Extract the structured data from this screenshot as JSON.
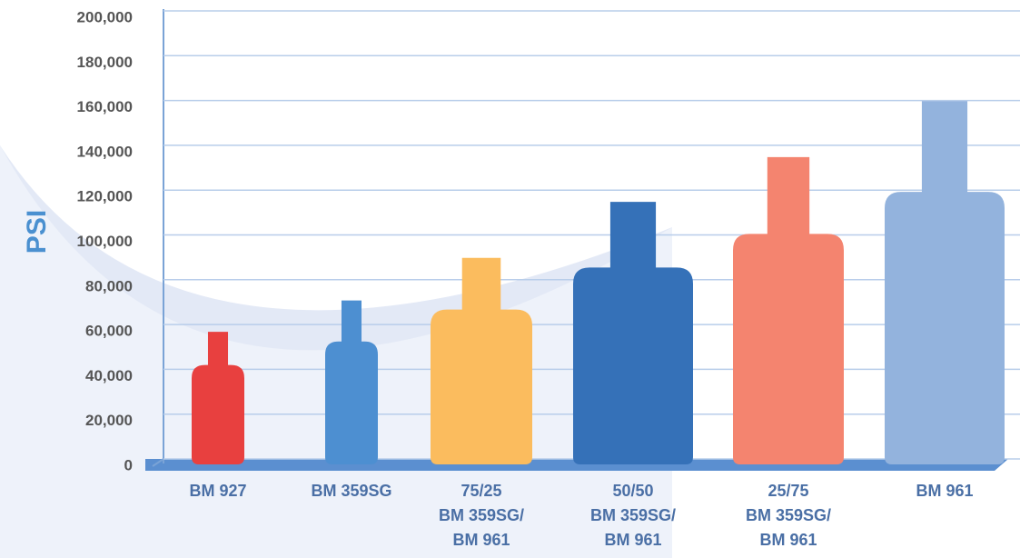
{
  "chart_data": {
    "type": "bottle",
    "y_label": "PSI",
    "categories": [
      "BM 927",
      "BM 359SG",
      "75/25\nBM 359SG/\nBM 961",
      "50/50\nBM 359SG/\nBM 961",
      "25/75\nBM 359SG/\nBM 961",
      "BM 961"
    ],
    "values": [
      60000,
      74000,
      93000,
      118000,
      138000,
      163000
    ],
    "colors": [
      "#e8403f",
      "#4d8fd1",
      "#fbbc5e",
      "#3571b8",
      "#f4846f",
      "#93b3dd"
    ],
    "ylim": [
      0,
      200000
    ],
    "yticks": [
      0,
      {
        "value": 20000,
        "label": "20,000"
      },
      {
        "value": 40000,
        "label": "40,000"
      },
      {
        "value": 60000,
        "label": "60,000"
      },
      {
        "value": 80000,
        "label": "80,000"
      },
      {
        "value": 100000,
        "label": "100,000"
      },
      {
        "value": 120000,
        "label": "120,000"
      },
      {
        "value": 140000,
        "label": "140,000"
      },
      {
        "value": 160000,
        "label": "160,000"
      },
      {
        "value": 180000,
        "label": "180,000"
      },
      {
        "value": 200000,
        "label": "200,000"
      }
    ],
    "grid": true
  }
}
